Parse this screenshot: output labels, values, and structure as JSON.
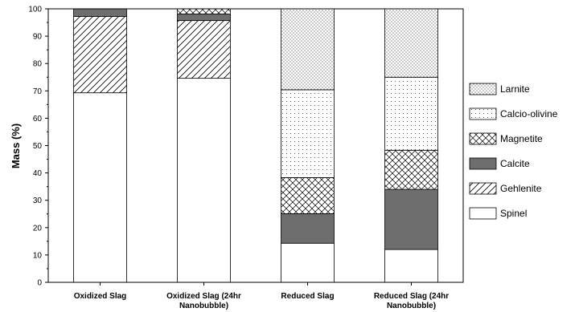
{
  "chart_data": {
    "type": "bar",
    "stacked": true,
    "title": "",
    "xlabel": "",
    "ylabel": "Mass (%)",
    "ylim": [
      0,
      100
    ],
    "yticks": [
      0,
      10,
      20,
      30,
      40,
      50,
      60,
      70,
      80,
      90,
      100
    ],
    "grid": false,
    "legend_position": "right",
    "categories": [
      [
        "Oxidized Slag"
      ],
      [
        "Oxidized Slag (24hr",
        "Nanobubble)"
      ],
      [
        "Reduced Slag"
      ],
      [
        "Reduced Slag (24hr",
        "Nanobubble)"
      ]
    ],
    "series": [
      {
        "name": "Spinel",
        "pattern": "blank",
        "values": [
          69.3,
          74.6,
          14.3,
          12.0
        ]
      },
      {
        "name": "Gehlenite",
        "pattern": "diagonal-lines",
        "values": [
          27.9,
          21.1,
          0,
          0
        ]
      },
      {
        "name": "Calcite",
        "pattern": "solid-gray",
        "values": [
          2.8,
          2.4,
          10.8,
          22.0
        ]
      },
      {
        "name": "Magnetite",
        "pattern": "crosshatch",
        "values": [
          0,
          1.9,
          13.2,
          14.3
        ]
      },
      {
        "name": "Calcio-olivine",
        "pattern": "sparse-dots",
        "values": [
          0,
          0,
          32.1,
          26.7
        ]
      },
      {
        "name": "Larnite",
        "pattern": "dense-dots",
        "values": [
          0,
          0,
          29.6,
          25.0
        ]
      }
    ],
    "colors": {
      "calcite_fill": "#6e6e6e",
      "stroke": "#000000"
    }
  }
}
